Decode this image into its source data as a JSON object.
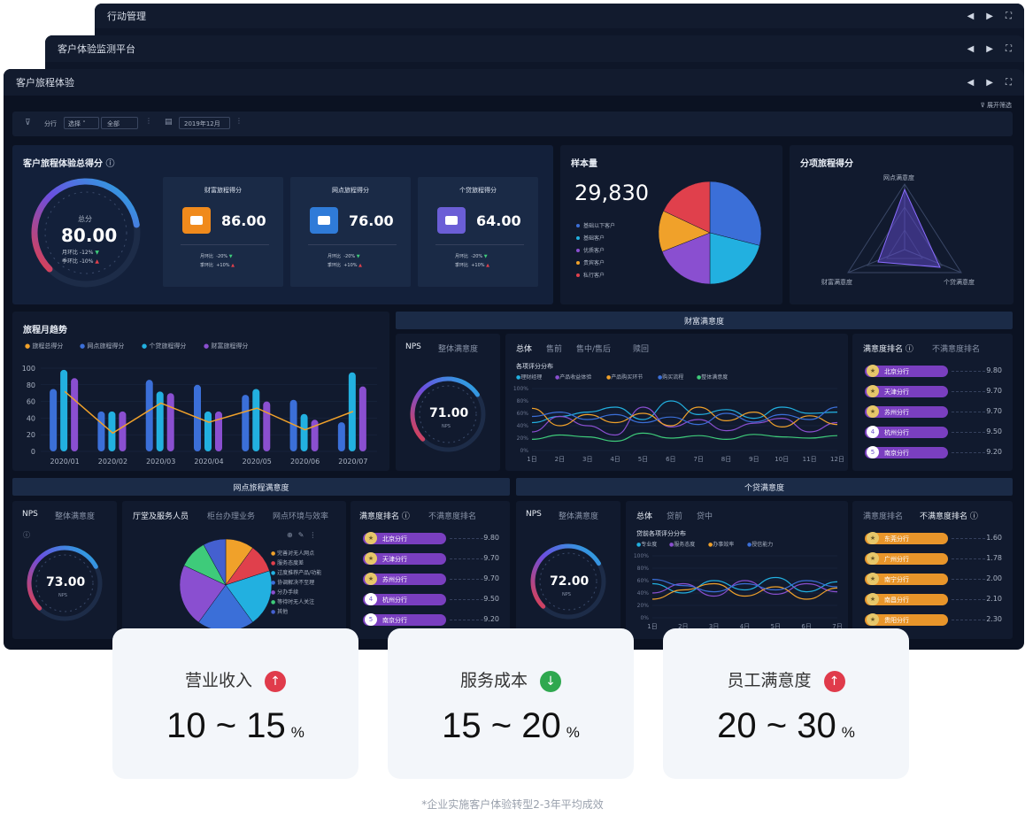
{
  "windows": {
    "back": {
      "title": "行动管理"
    },
    "middle": {
      "title": "客户体验监测平台"
    },
    "front": {
      "title": "客户旅程体验",
      "expand_filter": "展开筛选"
    },
    "filter_short": "展开筛选"
  },
  "filters": {
    "branch_label": "分行",
    "branch_sel": "选择",
    "branch_val": "全部",
    "date": "2019年12月"
  },
  "score_panel": {
    "title": "客户旅程体验总得分",
    "total_label": "总分",
    "total": "80.00",
    "mom_label": "月环比",
    "mom": "-12%",
    "yoy_label": "季环比",
    "yoy": "-10%",
    "subs": [
      {
        "title": "财富旅程得分",
        "value": "86.00",
        "mom_label": "月环比",
        "mom": "-20%",
        "yoy_label": "季环比",
        "yoy": "+10%",
        "color": "#f08a1c"
      },
      {
        "title": "网点旅程得分",
        "value": "76.00",
        "mom_label": "月环比",
        "mom": "-20%",
        "yoy_label": "季环比",
        "yoy": "+10%",
        "color": "#2f7bd8"
      },
      {
        "title": "个贷旅程得分",
        "value": "64.00",
        "mom_label": "月环比",
        "mom": "-20%",
        "yoy_label": "季环比",
        "yoy": "+10%",
        "color": "#6b5ed6"
      }
    ]
  },
  "sample": {
    "title": "样本量",
    "value": "29,830",
    "legend": [
      {
        "label": "基础以下客户",
        "color": "#3b6fd8"
      },
      {
        "label": "基础客户",
        "color": "#22b0e0"
      },
      {
        "label": "优质客户",
        "color": "#8a4fd0"
      },
      {
        "label": "贵宾客户",
        "color": "#f0a12a"
      },
      {
        "label": "私行客户",
        "color": "#e0404c"
      }
    ],
    "slices": [
      0.29,
      0.21,
      0.19,
      0.13,
      0.18
    ]
  },
  "radar": {
    "title": "分项旅程得分",
    "labels": [
      "网点满意度",
      "财富满意度",
      "个贷满意度"
    ]
  },
  "trend": {
    "title": "旅程月趋势",
    "legend": [
      {
        "label": "旅程总得分",
        "color": "#f0a12a"
      },
      {
        "label": "网点旅程得分",
        "color": "#3b6fd8"
      },
      {
        "label": "个贷旅程得分",
        "color": "#22b0e0"
      },
      {
        "label": "财富旅程得分",
        "color": "#8a4fd0"
      }
    ],
    "y_ticks": [
      "100",
      "80",
      "60",
      "40",
      "20",
      "0"
    ]
  },
  "chart_data": [
    {
      "type": "bar",
      "title": "旅程月趋势",
      "categories": [
        "2020/01",
        "2020/02",
        "2020/03",
        "2020/04",
        "2020/05",
        "2020/06",
        "2020/07"
      ],
      "ylim": [
        0,
        100
      ],
      "series": [
        {
          "name": "网点旅程得分",
          "values": [
            75,
            48,
            86,
            80,
            68,
            62,
            35
          ]
        },
        {
          "name": "个贷旅程得分",
          "values": [
            98,
            48,
            72,
            48,
            75,
            45,
            95
          ]
        },
        {
          "name": "财富旅程得分",
          "values": [
            88,
            48,
            70,
            48,
            60,
            38,
            78
          ]
        },
        {
          "name": "旅程总得分",
          "values": [
            72,
            22,
            58,
            35,
            52,
            26,
            48
          ]
        }
      ]
    },
    {
      "type": "line",
      "title": "各项评分分布",
      "categories": [
        "1日",
        "2日",
        "3日",
        "4日",
        "5日",
        "6日",
        "7日",
        "8日",
        "9日",
        "10日",
        "11日",
        "12日"
      ],
      "ylim": [
        0,
        100
      ],
      "series": [
        {
          "name": "理财经理",
          "values": [
            45,
            55,
            62,
            70,
            50,
            80,
            58,
            66,
            52,
            70,
            60,
            62
          ]
        },
        {
          "name": "产品收益体验",
          "values": [
            30,
            55,
            40,
            25,
            70,
            38,
            50,
            32,
            44,
            52,
            30,
            45
          ]
        },
        {
          "name": "产品购买环节",
          "values": [
            68,
            40,
            58,
            45,
            60,
            40,
            70,
            48,
            62,
            38,
            56,
            42
          ]
        },
        {
          "name": "购买流程",
          "values": [
            55,
            62,
            50,
            58,
            45,
            54,
            42,
            60,
            46,
            58,
            50,
            70
          ]
        },
        {
          "name": "整体满意度",
          "values": [
            18,
            25,
            22,
            15,
            28,
            20,
            24,
            18,
            26,
            22,
            20,
            24
          ]
        }
      ]
    },
    {
      "type": "line",
      "title": "贷前各项评分分布",
      "categories": [
        "1日",
        "2日",
        "3日",
        "4日",
        "5日",
        "6日",
        "7日"
      ],
      "ylim": [
        0,
        100
      ],
      "series": [
        {
          "name": "专业度",
          "values": [
            55,
            40,
            60,
            45,
            65,
            42,
            58
          ]
        },
        {
          "name": "服务态度",
          "values": [
            40,
            55,
            35,
            60,
            38,
            55,
            42
          ]
        },
        {
          "name": "办事效率",
          "values": [
            30,
            45,
            55,
            35,
            50,
            30,
            48
          ]
        },
        {
          "name": "授信能力",
          "values": [
            62,
            52,
            42,
            55,
            45,
            60,
            50
          ]
        }
      ]
    },
    {
      "type": "pie",
      "title": "厅堂及服务人员",
      "categories": [
        "完善对无人网点",
        "服务态度差",
        "过度推荐产品/功能",
        "协调解决不至理",
        "分办手续",
        "等待时无人关注",
        "其他"
      ],
      "values": [
        0.1,
        0.1,
        0.2,
        0.2,
        0.22,
        0.1,
        0.08
      ]
    }
  ],
  "wealth": {
    "band": "财富满意度",
    "nps_tab": "NPS",
    "nps_tab2": "整体满意度",
    "nps_value": "71.00",
    "nps_unit": "NPS",
    "tabs": [
      "总体",
      "售前",
      "售中/售后",
      "赎回"
    ],
    "chart_title": "各项评分分布",
    "legend": [
      {
        "label": "理财经理",
        "color": "#22b0e0"
      },
      {
        "label": "产品收益体验",
        "color": "#8a4fd0"
      },
      {
        "label": "产品购买环节",
        "color": "#f0a12a"
      },
      {
        "label": "购买流程",
        "color": "#3b6fd8"
      },
      {
        "label": "整体满意度",
        "color": "#3ecb7a"
      }
    ],
    "y_ticks": [
      "100%",
      "80%",
      "60%",
      "40%",
      "20%",
      "0%"
    ],
    "rank_tab": "满意度排名",
    "rank_tab2": "不满意度排名",
    "ranks": [
      {
        "name": "北京分行",
        "value": "9.80"
      },
      {
        "name": "天津分行",
        "value": "9.70"
      },
      {
        "name": "苏州分行",
        "value": "9.70"
      },
      {
        "name": "杭州分行",
        "value": "9.50",
        "num": "4"
      },
      {
        "name": "南京分行",
        "value": "9.20",
        "num": "5"
      }
    ]
  },
  "branch": {
    "band": "网点旅程满意度",
    "nps_tab": "NPS",
    "nps_tab2": "整体满意度",
    "nps_value": "73.00",
    "nps_unit": "NPS",
    "tabs": [
      "厅堂及服务人员",
      "柜台办理业务",
      "网点环境与效率"
    ],
    "pie_legend": [
      {
        "label": "完善对无人网点",
        "color": "#f0a12a"
      },
      {
        "label": "服务态度差",
        "color": "#e0404c"
      },
      {
        "label": "过度推荐产品/功能",
        "color": "#22b0e0"
      },
      {
        "label": "协调解决不至理",
        "color": "#3b6fd8"
      },
      {
        "label": "分办手续",
        "color": "#8a4fd0"
      },
      {
        "label": "等待时无人关注",
        "color": "#3ecb7a"
      },
      {
        "label": "其他",
        "color": "#4460d0"
      }
    ],
    "rank_tab": "满意度排名",
    "rank_tab2": "不满意度排名",
    "ranks": [
      {
        "name": "北京分行",
        "value": "9.80"
      },
      {
        "name": "天津分行",
        "value": "9.70"
      },
      {
        "name": "苏州分行",
        "value": "9.70"
      },
      {
        "name": "杭州分行",
        "value": "9.50",
        "num": "4"
      },
      {
        "name": "南京分行",
        "value": "9.20",
        "num": "5"
      }
    ]
  },
  "loan": {
    "band": "个贷满意度",
    "nps_tab": "NPS",
    "nps_tab2": "整体满意度",
    "nps_value": "72.00",
    "nps_unit": "NPS",
    "tabs": [
      "总体",
      "贷前",
      "贷中"
    ],
    "chart_title": "贷前各项评分分布",
    "legend": [
      {
        "label": "专业度",
        "color": "#22b0e0"
      },
      {
        "label": "服务态度",
        "color": "#8a4fd0"
      },
      {
        "label": "办事效率",
        "color": "#f0a12a"
      },
      {
        "label": "授信能力",
        "color": "#3b6fd8"
      }
    ],
    "y_ticks": [
      "100%",
      "80%",
      "60%",
      "40%",
      "20%",
      "0%"
    ],
    "rank_tab": "满意度排名",
    "rank_tab2": "不满意度排名",
    "ranks": [
      {
        "name": "东莞分行",
        "value": "1.60"
      },
      {
        "name": "广州分行",
        "value": "1.78"
      },
      {
        "name": "南宁分行",
        "value": "2.00"
      },
      {
        "name": "南昌分行",
        "value": "2.10"
      },
      {
        "name": "贵阳分行",
        "value": "2.30"
      }
    ]
  },
  "kpis": [
    {
      "label": "营业收入",
      "value": "10 ~ 15",
      "unit": "%",
      "dir": "up",
      "color": "#e03b4b"
    },
    {
      "label": "服务成本",
      "value": "15 ~ 20",
      "unit": "%",
      "dir": "down",
      "color": "#2fa84f"
    },
    {
      "label": "员工满意度",
      "value": "20 ~ 30",
      "unit": "%",
      "dir": "up",
      "color": "#e03b4b"
    }
  ],
  "footnote": "*企业实施客户体验转型2-3年平均成效"
}
